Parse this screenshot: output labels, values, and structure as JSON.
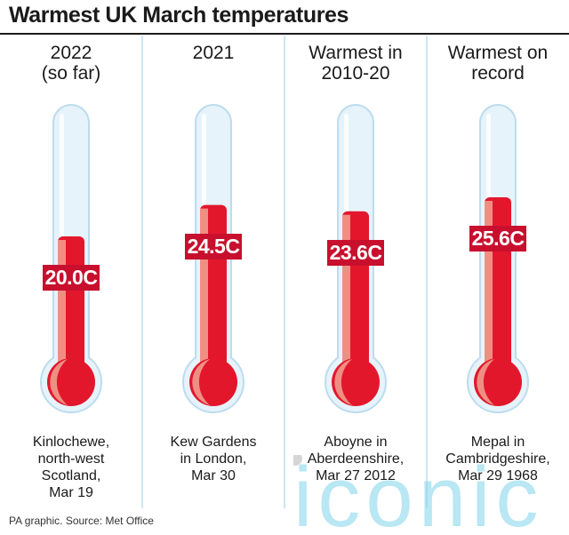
{
  "title": "Warmest UK March temperatures",
  "source": "PA graphic. Source: Met Office",
  "watermark": "iconic",
  "colors": {
    "tube_fill": "#e6f3fa",
    "tube_outline": "#bcdcee",
    "mercury": "#e3172c",
    "mercury_shade": "#ef8f83",
    "label_bg": "#c8102e"
  },
  "chart_data": {
    "type": "bar",
    "title": "Warmest UK March temperatures",
    "unit": "C",
    "series": [
      {
        "heading": [
          "2022",
          "(so far)"
        ],
        "value": 20.0,
        "label": "20.0C",
        "location": [
          "Kinlochewe,",
          "north-west",
          "Scotland,",
          "Mar 19"
        ]
      },
      {
        "heading": [
          "2021"
        ],
        "value": 24.5,
        "label": "24.5C",
        "location": [
          "Kew Gardens",
          "in London,",
          "Mar 30"
        ]
      },
      {
        "heading": [
          "Warmest in",
          "2010-20"
        ],
        "value": 23.6,
        "label": "23.6C",
        "location": [
          "Aboyne in",
          "Aberdeenshire,",
          "Mar 27 2012"
        ]
      },
      {
        "heading": [
          "Warmest on",
          "record"
        ],
        "value": 25.6,
        "label": "25.6C",
        "location": [
          "Mepal in",
          "Cambridgeshire,",
          "Mar 29 1968"
        ]
      }
    ]
  }
}
